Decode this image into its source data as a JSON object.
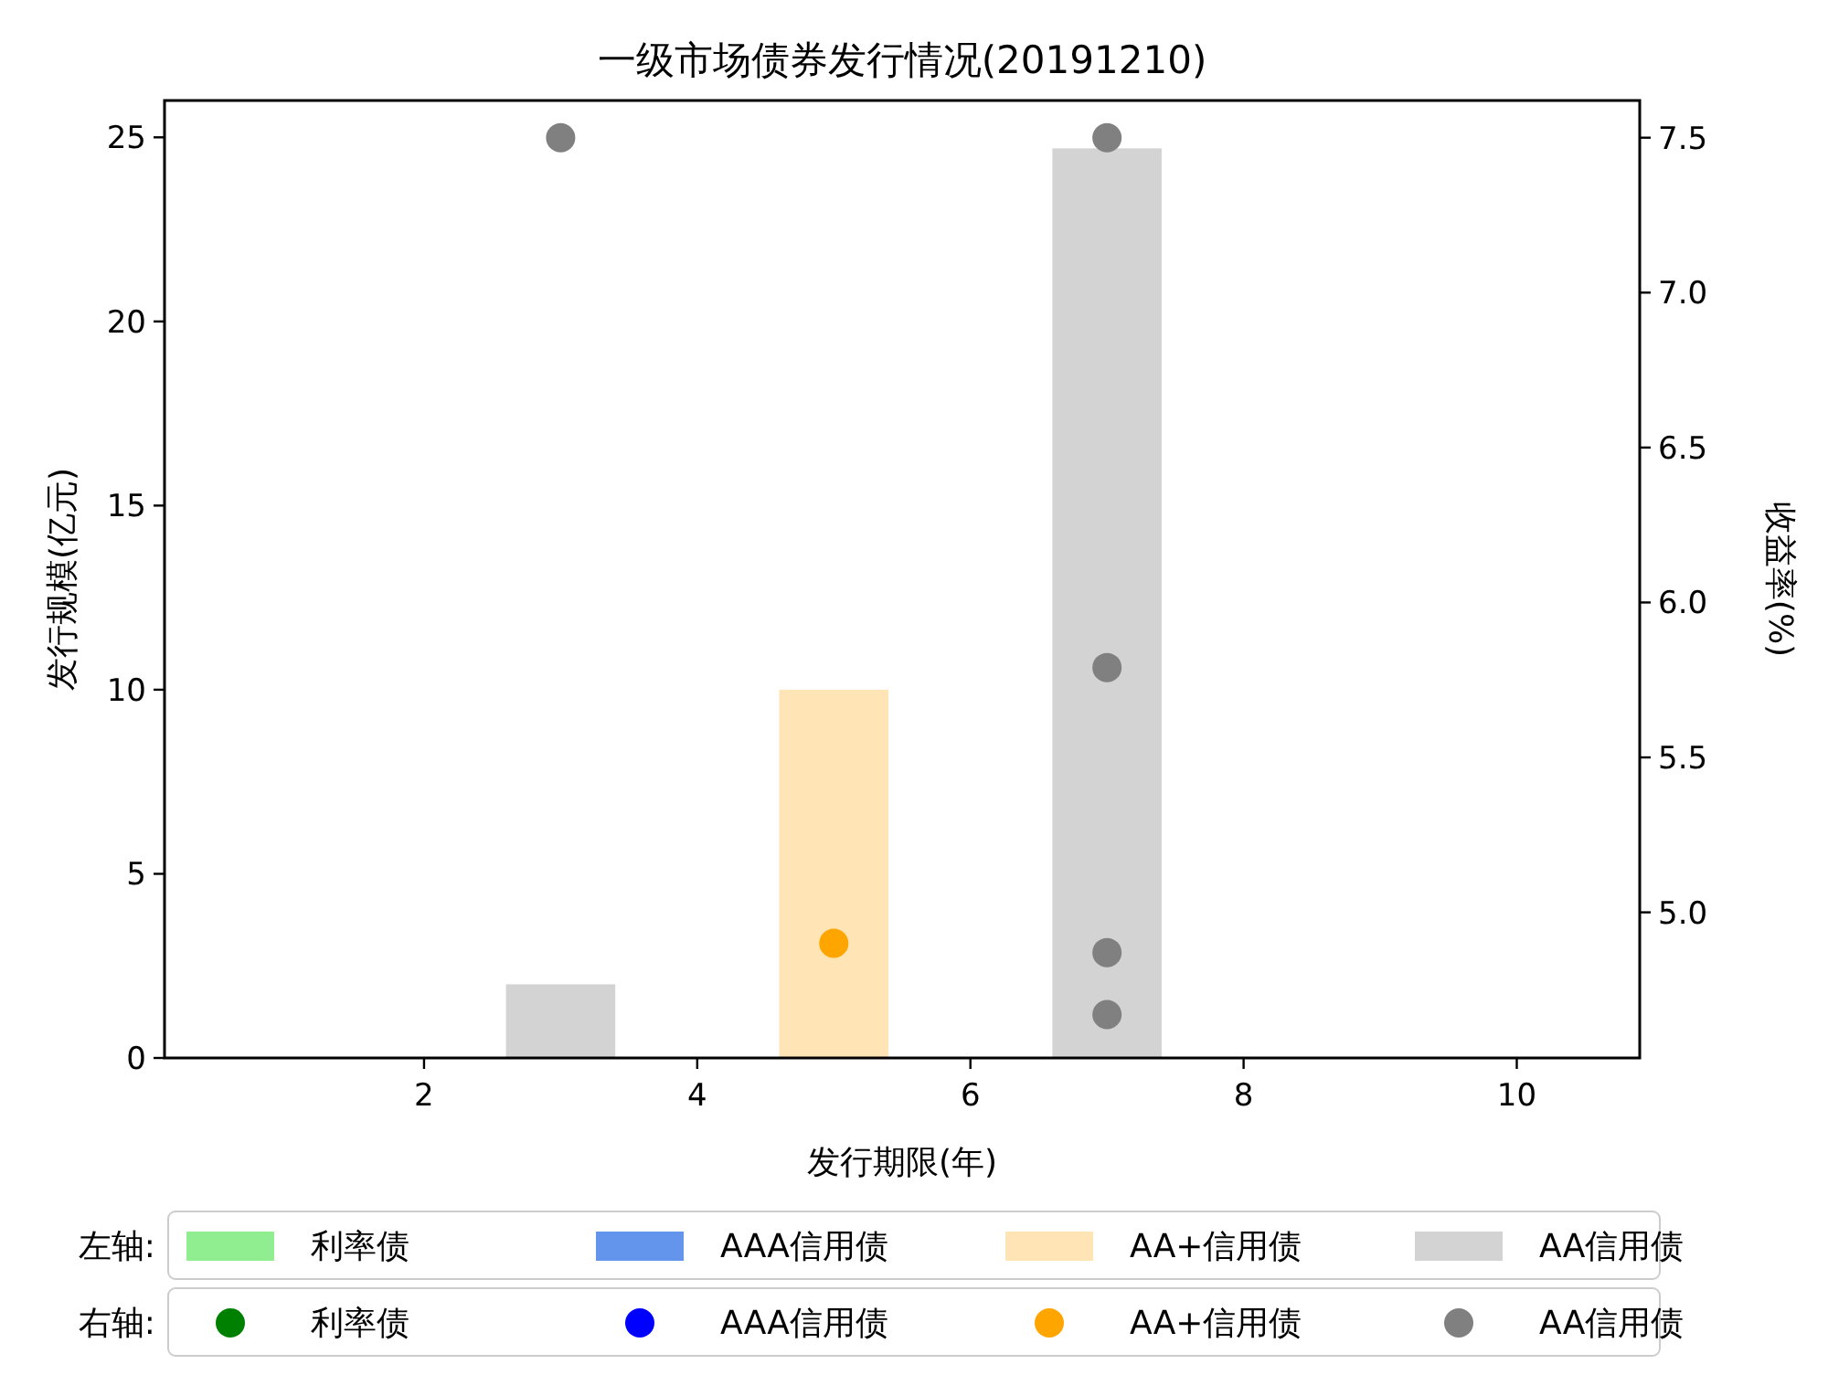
{
  "chart_data": {
    "type": "bar",
    "title": "一级市场债券发行情况(20191210)",
    "xlabel": "发行期限(年)",
    "ylabel": "发行规模(亿元)",
    "y2label": "收益率(%)",
    "xlim": [
      0.1,
      10.9
    ],
    "xticks": [
      2,
      4,
      6,
      8,
      10
    ],
    "ylim": [
      0,
      26
    ],
    "yticks": [
      0,
      5,
      10,
      15,
      20,
      25
    ],
    "y2lim": [
      4.53,
      7.62
    ],
    "y2ticks": [
      {
        "value": 5,
        "label": "5.0"
      },
      5.5,
      {
        "value": 6,
        "label": "6.0"
      },
      6.5,
      {
        "value": 7,
        "label": "7.0"
      },
      7.5
    ],
    "legend": "bottom",
    "marker": "circle",
    "annotations": [
      "左轴:",
      "右轴:"
    ],
    "series": [
      {
        "name": "利率债",
        "color": "#90ee90"
      },
      {
        "name": "AAA信用债",
        "color": "#6495ed"
      },
      {
        "name": "AA+信用债",
        "color": "#ffe4b5",
        "x": [
          5
        ],
        "values": [
          10
        ]
      },
      {
        "name": "AA信用债",
        "color": "#d3d3d3",
        "x": [
          3,
          7
        ],
        "values": [
          2,
          24.7
        ]
      },
      {
        "name": "利率债",
        "type": "scatter",
        "axis": "y2",
        "color": "#008000"
      },
      {
        "name": "AAA信用债",
        "type": "scatter",
        "axis": "y2",
        "color": "#0000ff"
      },
      {
        "name": "AA+信用债",
        "type": "scatter",
        "axis": "y2",
        "color": "#ffa500",
        "x": [
          5
        ],
        "values": [
          4.9
        ]
      },
      {
        "name": "AA信用债",
        "type": "scatter",
        "axis": "y2",
        "color": "#808080",
        "x": [
          3,
          7,
          7,
          7,
          7
        ],
        "values": [
          7.5,
          7.5,
          5.79,
          4.87,
          4.67
        ]
      }
    ]
  }
}
